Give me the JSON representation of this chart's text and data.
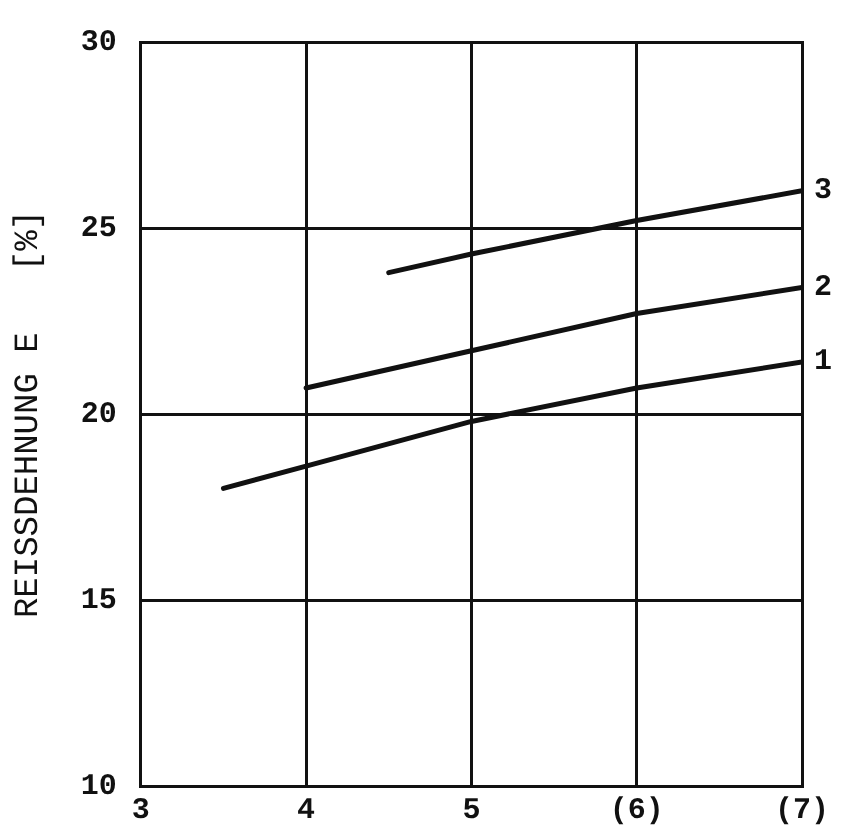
{
  "chart_data": {
    "type": "line",
    "ylabel": "REISSDEHNUNG E   [%]",
    "xlim": [
      3,
      7
    ],
    "xticks": [
      3,
      4,
      5,
      {
        "value": 6,
        "label": "(6)"
      },
      {
        "value": 7,
        "label": "(7)"
      }
    ],
    "ylim": [
      10,
      30
    ],
    "yticks": [
      10,
      15,
      20,
      25,
      30
    ],
    "grid": true,
    "legend": false,
    "marker": "none",
    "series": [
      {
        "name": "1",
        "color": "#111111",
        "x": [
          3.5,
          4,
          5,
          6,
          7
        ],
        "values": [
          18.0,
          18.6,
          19.8,
          20.7,
          21.4
        ]
      },
      {
        "name": "2",
        "color": "#111111",
        "x": [
          4,
          5,
          6,
          7
        ],
        "values": [
          20.7,
          21.7,
          22.7,
          23.4
        ]
      },
      {
        "name": "3",
        "color": "#111111",
        "x": [
          4.5,
          5,
          6,
          7
        ],
        "values": [
          23.8,
          24.3,
          25.2,
          26.0
        ]
      }
    ]
  }
}
